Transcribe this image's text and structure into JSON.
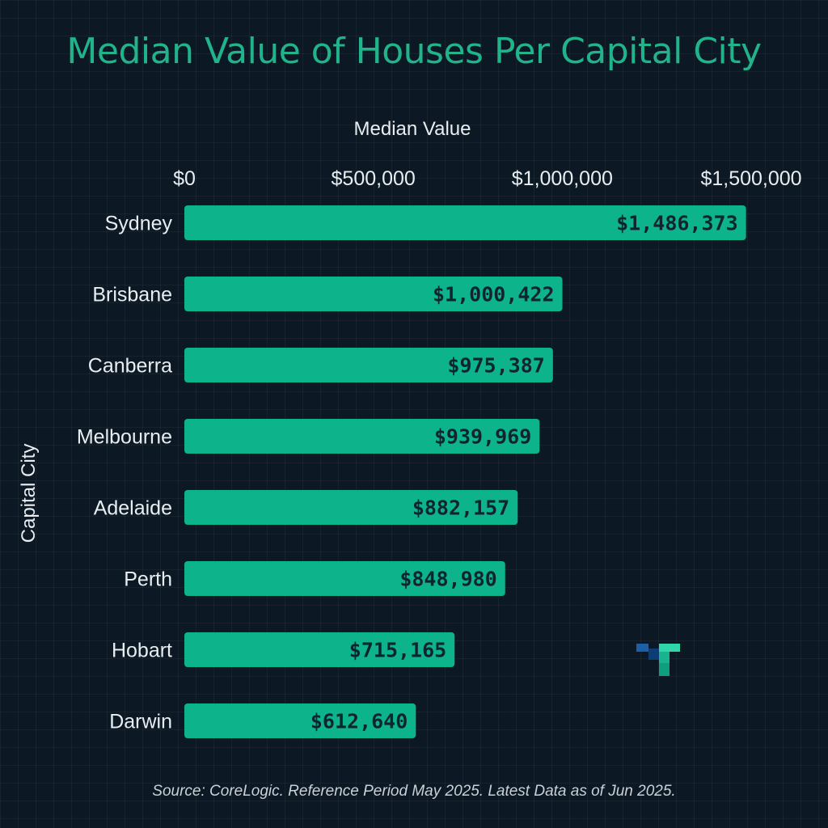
{
  "chart_data": {
    "type": "bar",
    "orientation": "horizontal",
    "title": "Median Value of Houses Per Capital City",
    "xlabel": "Median Value",
    "ylabel": "Capital City",
    "xlim": [
      0,
      1500000
    ],
    "ticks": [
      {
        "value": 0,
        "label": "$0"
      },
      {
        "value": 500000,
        "label": "$500,000"
      },
      {
        "value": 1000000,
        "label": "$1,000,000"
      },
      {
        "value": 1500000,
        "label": "$1,500,000"
      }
    ],
    "categories": [
      "Sydney",
      "Brisbane",
      "Canberra",
      "Melbourne",
      "Adelaide",
      "Perth",
      "Hobart",
      "Darwin"
    ],
    "values": [
      1486373,
      1000422,
      975387,
      939969,
      882157,
      848980,
      715165,
      612640
    ],
    "data_labels": [
      "$1,486,373",
      "$1,000,422",
      "$975,387",
      "$939,969",
      "$882,157",
      "$848,980",
      "$715,165",
      "$612,640"
    ],
    "grid": false,
    "legend": "none"
  },
  "source": "Source: CoreLogic. Reference Period May 2025. Latest Data as of Jun 2025.",
  "colors": {
    "bar": "#0db38b",
    "title": "#21b38a",
    "background": "#0c1824",
    "text": "#e8edf0",
    "bar_label": "#0f2430"
  },
  "logo": {
    "icon": "brand-logo-icon"
  }
}
